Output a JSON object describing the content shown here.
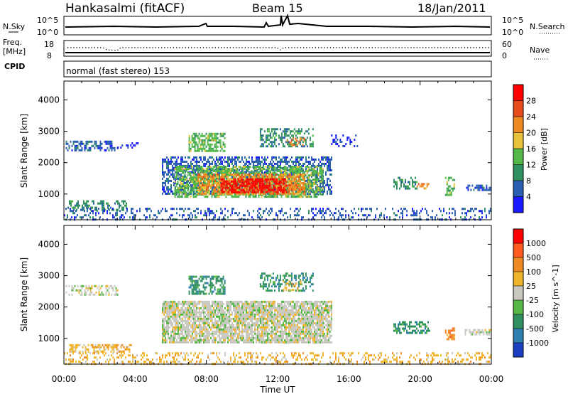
{
  "header": {
    "station": "Hankasalmi (fitACF)",
    "beam": "Beam 15",
    "date": "18/Jan/2011"
  },
  "panels": {
    "nsky": {
      "label": "N.Sky",
      "ytick_top": "10^5",
      "ytick_bottom": "10^0",
      "right_label": "N.Search",
      "right_top": "10^5",
      "right_bottom": "10^0"
    },
    "freq": {
      "label": "Freq.",
      "unit": "[MHz]",
      "ytick_top": "18",
      "ytick_bottom": "8",
      "right_label": "Nave",
      "right_top": "60",
      "right_bottom": "0"
    },
    "cpid": {
      "label": "CPID",
      "text": "normal (fast stereo) 153"
    }
  },
  "chart_data": [
    {
      "type": "heatmap",
      "name": "power",
      "xlabel": "Time UT",
      "ylabel": "Slant Range [km]",
      "xlim": [
        0,
        24
      ],
      "ylim": [
        180,
        4600
      ],
      "yticks": [
        1000,
        2000,
        3000,
        4000
      ],
      "colorbar": {
        "label": "Power [dB]",
        "ticks": [
          "4",
          "8",
          "12",
          "16",
          "20",
          "24",
          "28"
        ],
        "colors": [
          "#1a1aff",
          "#2a5fb0",
          "#2f8f5f",
          "#54b848",
          "#e8c23a",
          "#ef8a22",
          "#e84b1d",
          "#ff0000"
        ]
      },
      "regions": [
        {
          "t0": 0.1,
          "t1": 3.0,
          "r0": 2420,
          "r1": 2700,
          "c": 1,
          "d": 0.55
        },
        {
          "t0": 3.0,
          "t1": 4.2,
          "r0": 2450,
          "r1": 2650,
          "c": 0,
          "d": 0.3
        },
        {
          "t0": 0.2,
          "t1": 3.5,
          "r0": 500,
          "r1": 800,
          "c": 2,
          "d": 0.5
        },
        {
          "t0": 0.0,
          "t1": 24.0,
          "r0": 200,
          "r1": 560,
          "c": 1,
          "d": 0.28
        },
        {
          "t0": 5.5,
          "t1": 15.0,
          "r0": 1000,
          "r1": 2200,
          "c": 1,
          "d": 0.55
        },
        {
          "t0": 6.2,
          "t1": 14.5,
          "r0": 900,
          "r1": 1900,
          "c": 3,
          "d": 0.65
        },
        {
          "t0": 7.5,
          "t1": 13.5,
          "r0": 1000,
          "r1": 1650,
          "c": 5,
          "d": 0.65
        },
        {
          "t0": 8.8,
          "t1": 12.5,
          "r0": 1050,
          "r1": 1500,
          "c": 7,
          "d": 0.7
        },
        {
          "t0": 7.0,
          "t1": 9.0,
          "r0": 2400,
          "r1": 2950,
          "c": 3,
          "d": 0.6
        },
        {
          "t0": 11.0,
          "t1": 14.0,
          "r0": 2500,
          "r1": 3100,
          "c": 2,
          "d": 0.45
        },
        {
          "t0": 12.5,
          "t1": 13.5,
          "r0": 2550,
          "r1": 2800,
          "c": 5,
          "d": 0.45
        },
        {
          "t0": 15.0,
          "t1": 16.5,
          "r0": 2500,
          "r1": 2900,
          "c": 0,
          "d": 0.2
        },
        {
          "t0": 18.5,
          "t1": 19.8,
          "r0": 1150,
          "r1": 1550,
          "c": 2,
          "d": 0.5
        },
        {
          "t0": 19.8,
          "t1": 20.5,
          "r0": 1150,
          "r1": 1350,
          "c": 5,
          "d": 0.5
        },
        {
          "t0": 21.4,
          "t1": 21.9,
          "r0": 1000,
          "r1": 1550,
          "c": 3,
          "d": 0.55
        },
        {
          "t0": 22.5,
          "t1": 24.0,
          "r0": 1100,
          "r1": 1300,
          "c": 1,
          "d": 0.55
        }
      ]
    },
    {
      "type": "heatmap",
      "name": "velocity",
      "xlabel": "Time UT",
      "ylabel": "Slant Range [km]",
      "xlim": [
        0,
        24
      ],
      "ylim": [
        180,
        4600
      ],
      "xticks": [
        "00:00",
        "04:00",
        "08:00",
        "12:00",
        "16:00",
        "20:00",
        "00:00"
      ],
      "yticks": [
        1000,
        2000,
        3000,
        4000
      ],
      "colorbar": {
        "label": "Velocity [m s^-1]",
        "ticks": [
          "1000",
          "500",
          "100",
          "25",
          "-25",
          "-100",
          "-500",
          "-1000"
        ],
        "colors": [
          "#1a3fc0",
          "#2e7fb0",
          "#2f8f5f",
          "#55b845",
          "#c8c8c0",
          "#f0b42a",
          "#ef8a22",
          "#ff5a1d",
          "#ff0000"
        ]
      },
      "regions": [
        {
          "t0": 0.1,
          "t1": 3.0,
          "r0": 2420,
          "r1": 2700,
          "c": 4,
          "d": 0.4
        },
        {
          "t0": 0.3,
          "t1": 3.8,
          "r0": 550,
          "r1": 820,
          "c": 5,
          "d": 0.55
        },
        {
          "t0": 0.0,
          "t1": 24.0,
          "r0": 200,
          "r1": 560,
          "c": 5,
          "d": 0.3
        },
        {
          "t0": 5.5,
          "t1": 15.0,
          "r0": 900,
          "r1": 2200,
          "c": 4,
          "d": 0.85
        },
        {
          "t0": 7.0,
          "t1": 9.0,
          "r0": 2400,
          "r1": 3000,
          "c": 2,
          "d": 0.6
        },
        {
          "t0": 11.0,
          "t1": 14.0,
          "r0": 2500,
          "r1": 3100,
          "c": 2,
          "d": 0.35
        },
        {
          "t0": 12.3,
          "t1": 13.3,
          "r0": 2550,
          "r1": 2850,
          "c": 5,
          "d": 0.4
        },
        {
          "t0": 18.5,
          "t1": 20.5,
          "r0": 1150,
          "r1": 1550,
          "c": 2,
          "d": 0.5
        },
        {
          "t0": 21.4,
          "t1": 21.9,
          "r0": 1000,
          "r1": 1350,
          "c": 6,
          "d": 0.6
        },
        {
          "t0": 22.5,
          "t1": 24.0,
          "r0": 1100,
          "r1": 1300,
          "c": 4,
          "d": 0.55
        }
      ]
    }
  ]
}
